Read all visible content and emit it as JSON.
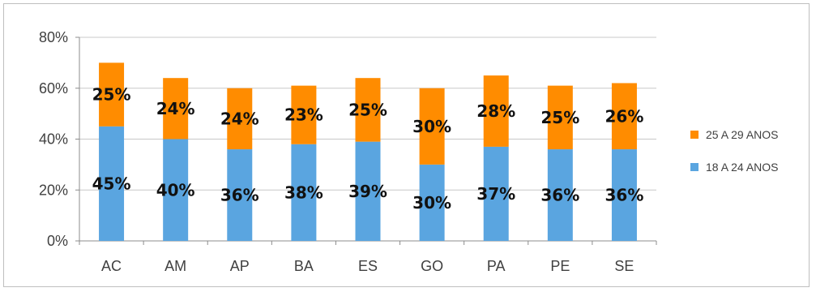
{
  "chart_data": {
    "type": "bar",
    "stacked": true,
    "categories": [
      "AC",
      "AM",
      "AP",
      "BA",
      "ES",
      "GO",
      "PA",
      "PE",
      "SE"
    ],
    "series": [
      {
        "name": "18 A 24 ANOS",
        "color": "#5aa5e0",
        "values": [
          45,
          40,
          36,
          38,
          39,
          30,
          37,
          36,
          36
        ],
        "labels": [
          "45%",
          "40%",
          "36%",
          "38%",
          "39%",
          "30%",
          "37%",
          "36%",
          "36%"
        ]
      },
      {
        "name": "25 A 29 ANOS",
        "color": "#ff8c00",
        "values": [
          25,
          24,
          24,
          23,
          25,
          30,
          28,
          25,
          26
        ],
        "labels": [
          "25%",
          "24%",
          "24%",
          "23%",
          "25%",
          "30%",
          "28%",
          "25%",
          "26%"
        ]
      }
    ],
    "yticks": [
      "0%",
      "20%",
      "40%",
      "60%",
      "80%"
    ],
    "ylim": [
      0,
      80
    ],
    "grid": true,
    "legend_position": "right",
    "legend_order": [
      "25 A 29 ANOS",
      "18 A 24 ANOS"
    ]
  }
}
